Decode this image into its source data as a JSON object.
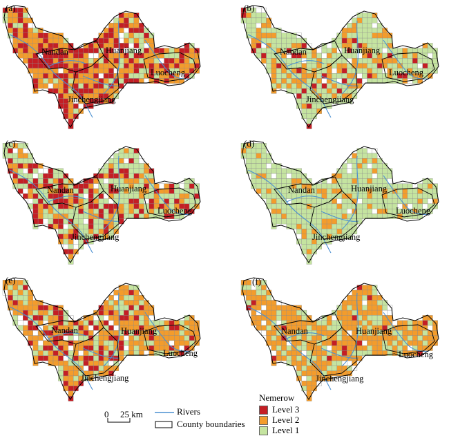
{
  "panels": [
    {
      "label": "(a)",
      "mix": [
        0.4,
        0.45,
        0.15
      ]
    },
    {
      "label": "(b)",
      "mix": [
        0.07,
        0.3,
        0.63
      ]
    },
    {
      "label": "(c)",
      "mix": [
        0.3,
        0.22,
        0.48
      ]
    },
    {
      "label": "(d)",
      "mix": [
        0.0,
        0.18,
        0.82
      ]
    },
    {
      "label": "(e)",
      "mix": [
        0.2,
        0.55,
        0.25
      ]
    },
    {
      "label": "(f)",
      "mix": [
        0.04,
        0.66,
        0.3
      ]
    }
  ],
  "counties": {
    "nandan": "Nandan",
    "huanjiang": "Huanjiang",
    "luocheng": "Luocheng",
    "jinchengjiang": "Jinchengjiang"
  },
  "legend": {
    "title": "Nemerow",
    "items": [
      {
        "label": "Level 3",
        "color": "#c41e24"
      },
      {
        "label": "Level 2",
        "color": "#f39c2c"
      },
      {
        "label": "Level 1",
        "color": "#c5e4a0"
      }
    ]
  },
  "scale": {
    "zero": "0",
    "distance": "25 km"
  },
  "key": {
    "rivers": "Rivers",
    "county_boundaries": "County boundaries"
  },
  "colors": {
    "river": "#4a8fd0",
    "boundary": "#000000",
    "grid_line": "#8a8a8a"
  }
}
